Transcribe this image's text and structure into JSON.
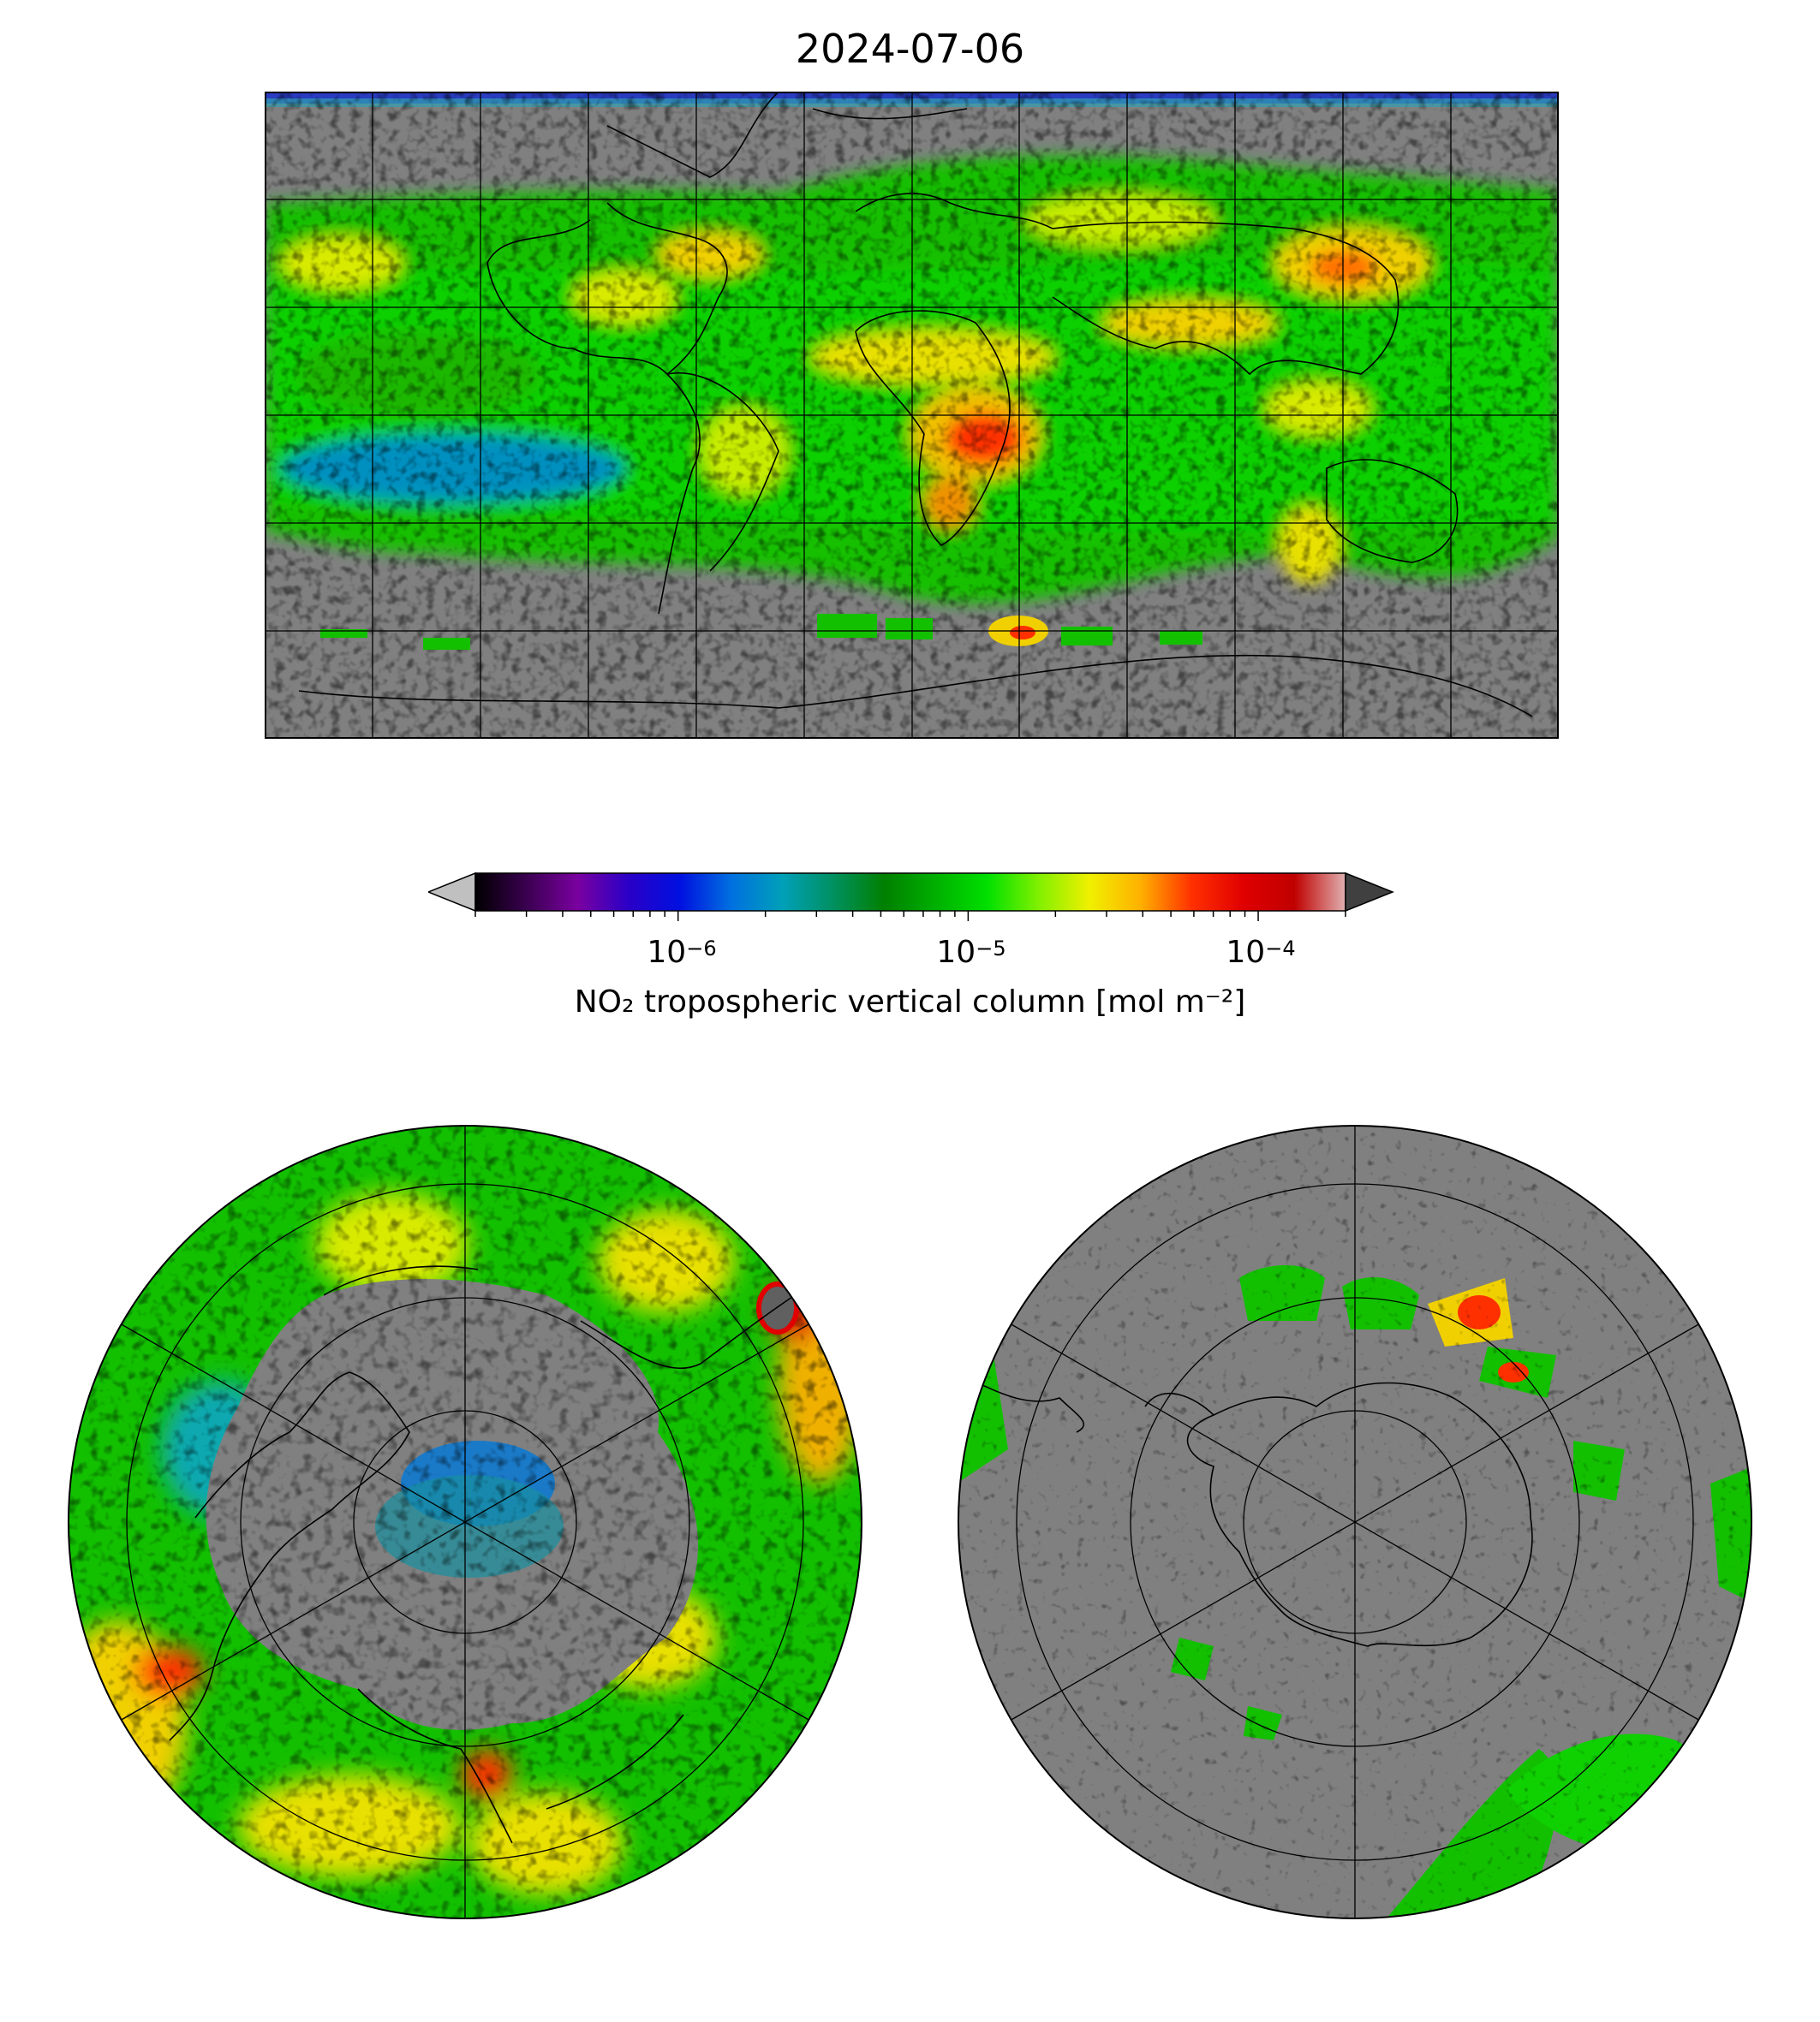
{
  "title": "2024-07-06",
  "colorbar": {
    "label": "NO₂ tropospheric vertical column [mol m⁻²]",
    "scale": "log",
    "range": [
      2e-07,
      0.0002
    ],
    "extend": "both",
    "ticks": [
      {
        "base": "10",
        "exp": "−6"
      },
      {
        "base": "10",
        "exp": "−5"
      },
      {
        "base": "10",
        "exp": "−4"
      }
    ],
    "colors": [
      "#000000",
      "#3a0050",
      "#7a00a0",
      "#2a00c8",
      "#0010e0",
      "#0070e0",
      "#00a0b8",
      "#009060",
      "#008000",
      "#00b000",
      "#00e000",
      "#80f000",
      "#f0f000",
      "#ffb000",
      "#ff3000",
      "#e00000",
      "#c00000",
      "#e0b0b0"
    ],
    "under_color": "#c0c0c0",
    "over_color": "#404040"
  },
  "maps": {
    "world": {
      "projection": "plate-carree",
      "gridlines": true,
      "no_data_color": "#808080"
    },
    "north": {
      "projection": "north-polar-stereographic",
      "gridlines": true,
      "no_data_color": "#808080"
    },
    "south": {
      "projection": "south-polar-stereographic",
      "gridlines": true,
      "no_data_color": "#808080"
    }
  }
}
